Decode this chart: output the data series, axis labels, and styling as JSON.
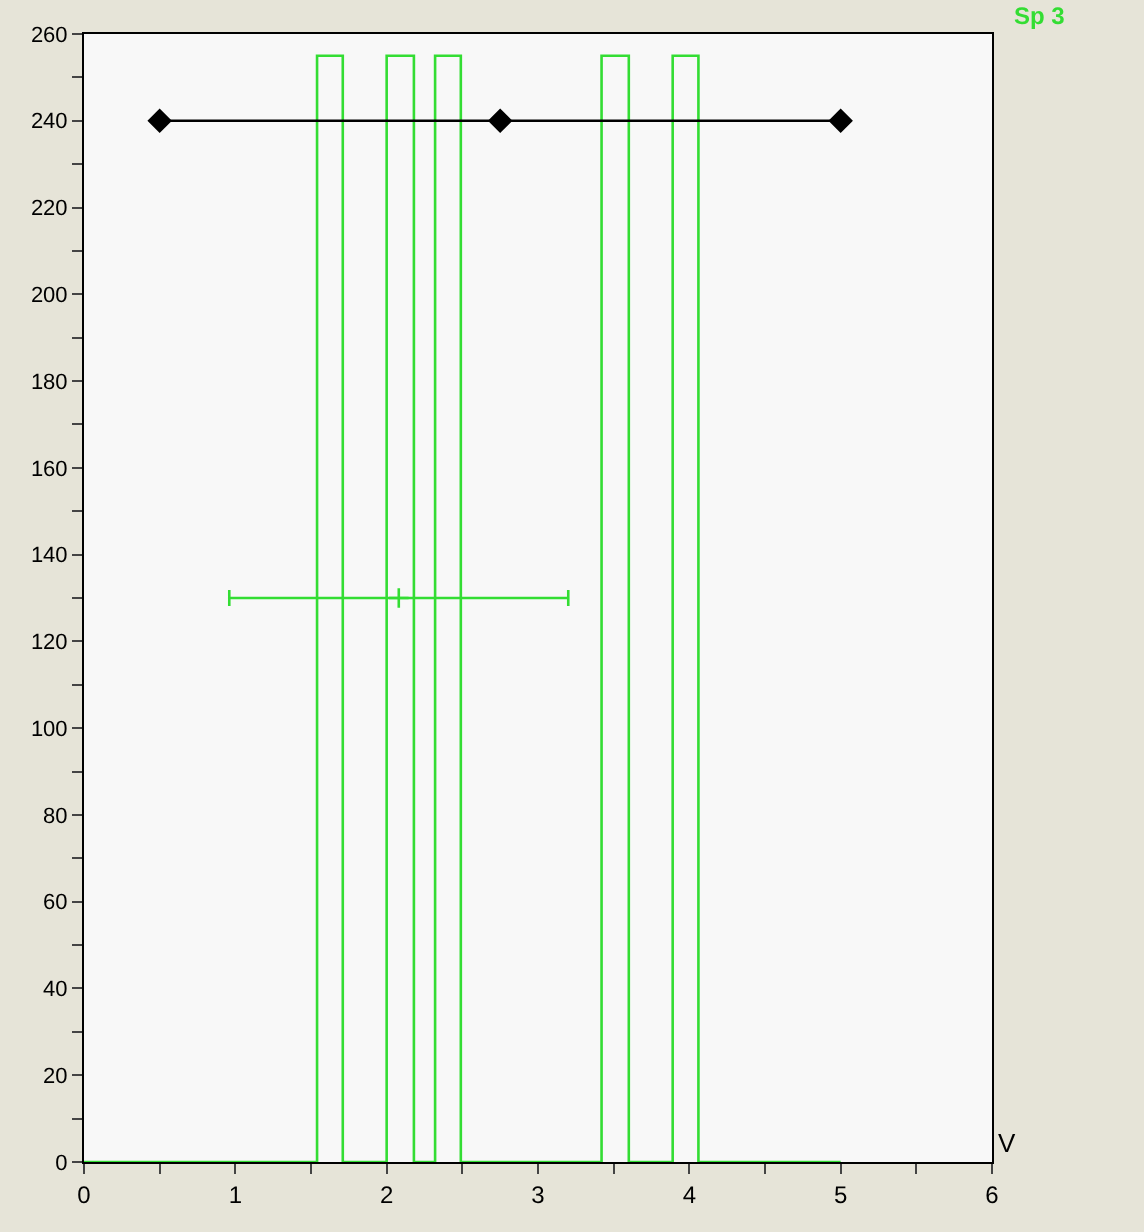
{
  "chart_data": {
    "type": "line",
    "xlabel": "V",
    "xlim": [
      0,
      6
    ],
    "ylim": [
      0,
      260
    ],
    "xticks": [
      0,
      {
        "value": 0.5,
        "label": null
      },
      1,
      {
        "value": 1.5,
        "label": null
      },
      2,
      {
        "value": 2.5,
        "label": null
      },
      3,
      {
        "value": 3.5,
        "label": null
      },
      4,
      {
        "value": 4.5,
        "label": null
      },
      5,
      {
        "value": 5.5,
        "label": null
      },
      6
    ],
    "yticks": [
      0,
      {
        "value": 10,
        "label": null
      },
      20,
      {
        "value": 30,
        "label": null
      },
      40,
      {
        "value": 50,
        "label": null
      },
      60,
      {
        "value": 70,
        "label": null
      },
      80,
      {
        "value": 90,
        "label": null
      },
      100,
      {
        "value": 110,
        "label": null
      },
      120,
      {
        "value": 130,
        "label": null
      },
      140,
      {
        "value": 150,
        "label": null
      },
      160,
      {
        "value": 170,
        "label": null
      },
      180,
      {
        "value": 190,
        "label": null
      },
      200,
      {
        "value": 210,
        "label": null
      },
      220,
      {
        "value": 230,
        "label": null
      },
      240,
      {
        "value": 250,
        "label": null
      },
      260
    ],
    "grid": false,
    "legend": "top right",
    "series": [
      {
        "name": "Sp 3",
        "color": "#33dd33",
        "marker": "none",
        "x": [
          0,
          1.54,
          1.54,
          1.71,
          1.71,
          2.0,
          2.0,
          2.18,
          2.18,
          2.32,
          2.32,
          2.49,
          2.49,
          3.42,
          3.42,
          3.6,
          3.6,
          3.89,
          3.89,
          4.06,
          4.06,
          5
        ],
        "values": [
          0,
          0,
          255,
          255,
          0,
          0,
          255,
          255,
          0,
          0,
          255,
          255,
          0,
          0,
          255,
          255,
          0,
          0,
          255,
          255,
          0,
          0
        ]
      },
      {
        "color": "#000000",
        "marker": "diamond",
        "x": [
          0.5,
          2.75,
          5
        ],
        "values": [
          240,
          240,
          240
        ]
      },
      {
        "color": "#33dd33",
        "type": "scatter",
        "marker": "cross",
        "x": [
          2.08
        ],
        "values": [
          130
        ],
        "xerrors": [
          1.12
        ]
      }
    ]
  }
}
